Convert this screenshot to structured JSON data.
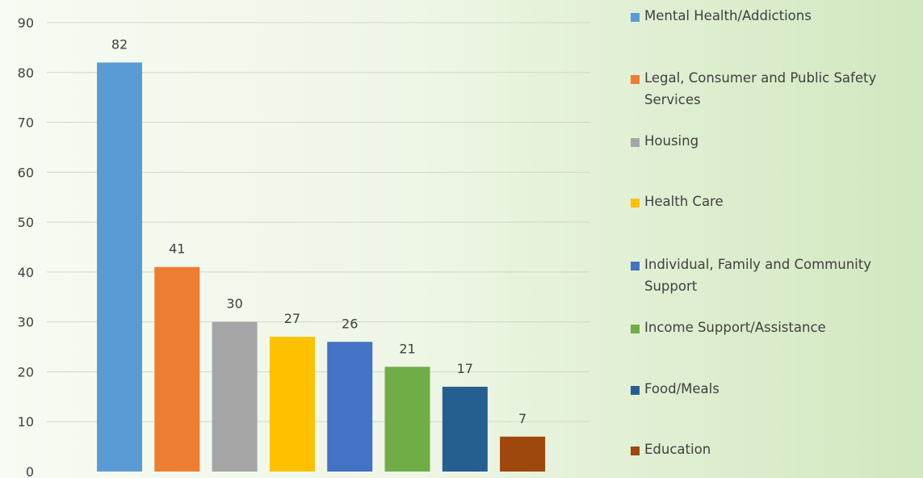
{
  "chart_data": {
    "type": "bar",
    "title": "",
    "xlabel": "",
    "ylabel": "",
    "ylim": [
      0,
      90
    ],
    "yticks": [
      0,
      10,
      20,
      30,
      40,
      50,
      60,
      70,
      80,
      90
    ],
    "grid": true,
    "legend_position": "right",
    "categories": [
      "Mental Health/Addictions",
      "Legal, Consumer and Public Safety Services",
      "Housing",
      "Health Care",
      "Individual, Family and Community Support",
      "Income Support/Assistance",
      "Food/Meals",
      "Education"
    ],
    "values": [
      82,
      41,
      30,
      27,
      26,
      21,
      17,
      7
    ],
    "colors": [
      "#5b9bd5",
      "#ed7d31",
      "#a5a5a5",
      "#ffc000",
      "#4472c4",
      "#70ad47",
      "#255e91",
      "#9e480e"
    ],
    "data_labels": true
  },
  "legend": {
    "items": [
      {
        "label": "Mental Health/Addictions",
        "color": "#5b9bd5"
      },
      {
        "label": "Legal, Consumer and Public Safety Services",
        "color": "#ed7d31"
      },
      {
        "label": "Housing",
        "color": "#a5a5a5"
      },
      {
        "label": "Health Care",
        "color": "#ffc000"
      },
      {
        "label": "Individual, Family and Community Support",
        "color": "#4472c4"
      },
      {
        "label": "Income Support/Assistance",
        "color": "#70ad47"
      },
      {
        "label": "Food/Meals",
        "color": "#255e91"
      },
      {
        "label": "Education",
        "color": "#9e480e"
      }
    ]
  }
}
